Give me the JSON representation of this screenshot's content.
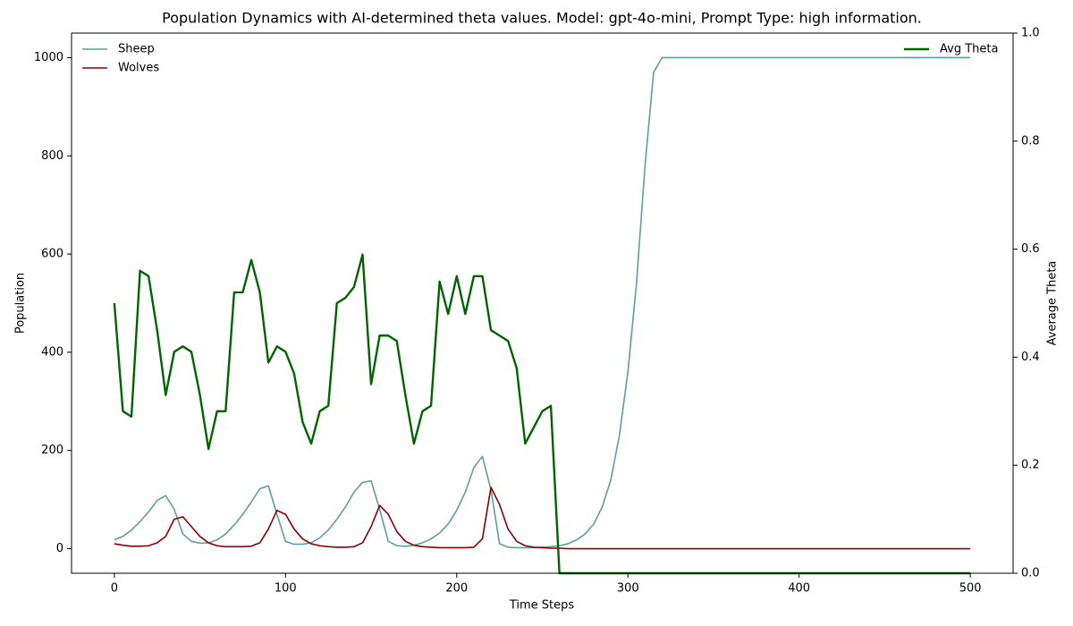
{
  "chart_data": {
    "type": "line",
    "title": "Population Dynamics with AI-determined theta values. Model: gpt-4o-mini, Prompt Type: high information.",
    "x_label": "Time Steps",
    "y_label": "Population",
    "y2_label": "Average Theta",
    "x": [
      0,
      5,
      10,
      15,
      20,
      25,
      30,
      35,
      40,
      45,
      50,
      55,
      60,
      65,
      70,
      75,
      80,
      85,
      90,
      95,
      100,
      105,
      110,
      115,
      120,
      125,
      130,
      135,
      140,
      145,
      150,
      155,
      160,
      165,
      170,
      175,
      180,
      185,
      190,
      195,
      200,
      205,
      210,
      215,
      220,
      225,
      230,
      235,
      240,
      245,
      250,
      255,
      260,
      265,
      270,
      275,
      280,
      285,
      290,
      295,
      300,
      305,
      310,
      315,
      320,
      325,
      330,
      335,
      340,
      345,
      350,
      355,
      360,
      365,
      370,
      375,
      380,
      385,
      390,
      395,
      400,
      405,
      410,
      415,
      420,
      425,
      430,
      435,
      440,
      445,
      450,
      455,
      460,
      465,
      470,
      475,
      480,
      485,
      490,
      495,
      500
    ],
    "series": [
      {
        "name": "Sheep",
        "color": "#5f9ea0",
        "axis": "y",
        "width": 1.6,
        "values": [
          18,
          25,
          38,
          55,
          75,
          98,
          108,
          80,
          30,
          15,
          11,
          12,
          18,
          30,
          48,
          70,
          95,
          122,
          128,
          70,
          15,
          9,
          9,
          12,
          22,
          38,
          60,
          85,
          115,
          135,
          138,
          80,
          15,
          6,
          5,
          7,
          12,
          20,
          32,
          50,
          78,
          115,
          165,
          188,
          120,
          10,
          3,
          2,
          2,
          2,
          3,
          4,
          6,
          10,
          18,
          30,
          50,
          85,
          140,
          230,
          360,
          540,
          780,
          970,
          1000,
          1000,
          1000,
          1000,
          1000,
          1000,
          1000,
          1000,
          1000,
          1000,
          1000,
          1000,
          1000,
          1000,
          1000,
          1000,
          1000,
          1000,
          1000,
          1000,
          1000,
          1000,
          1000,
          1000,
          1000,
          1000,
          1000,
          1000,
          1000,
          1000,
          1000,
          1000,
          1000,
          1000,
          1000,
          1000,
          1000
        ]
      },
      {
        "name": "Wolves",
        "color": "#8b0000",
        "axis": "y",
        "width": 1.6,
        "values": [
          10,
          7,
          5,
          5,
          6,
          12,
          25,
          60,
          65,
          45,
          25,
          12,
          6,
          4,
          4,
          4,
          5,
          12,
          40,
          78,
          70,
          40,
          20,
          10,
          6,
          4,
          3,
          3,
          4,
          12,
          45,
          88,
          70,
          35,
          15,
          7,
          4,
          3,
          2,
          2,
          2,
          2,
          3,
          20,
          125,
          90,
          40,
          15,
          6,
          3,
          2,
          1,
          1,
          0,
          0,
          0,
          0,
          0,
          0,
          0,
          0,
          0,
          0,
          0,
          0,
          0,
          0,
          0,
          0,
          0,
          0,
          0,
          0,
          0,
          0,
          0,
          0,
          0,
          0,
          0,
          0,
          0,
          0,
          0,
          0,
          0,
          0,
          0,
          0,
          0,
          0,
          0,
          0,
          0,
          0,
          0,
          0,
          0,
          0,
          0,
          0
        ]
      },
      {
        "name": "Avg Theta",
        "color": "#006400",
        "axis": "y2",
        "width": 2.4,
        "values": [
          0.5,
          0.3,
          0.29,
          0.56,
          0.55,
          0.45,
          0.33,
          0.41,
          0.42,
          0.41,
          0.33,
          0.23,
          0.3,
          0.3,
          0.52,
          0.52,
          0.58,
          0.52,
          0.39,
          0.42,
          0.41,
          0.37,
          0.28,
          0.24,
          0.3,
          0.31,
          0.5,
          0.51,
          0.53,
          0.59,
          0.35,
          0.44,
          0.44,
          0.43,
          0.33,
          0.24,
          0.3,
          0.31,
          0.54,
          0.48,
          0.55,
          0.48,
          0.55,
          0.55,
          0.45,
          0.44,
          0.43,
          0.38,
          0.24,
          0.27,
          0.3,
          0.31,
          0,
          0,
          0,
          0,
          0,
          0,
          0,
          0,
          0,
          0,
          0,
          0,
          0,
          0,
          0,
          0,
          0,
          0,
          0,
          0,
          0,
          0,
          0,
          0,
          0,
          0,
          0,
          0,
          0,
          0,
          0,
          0,
          0,
          0,
          0,
          0,
          0,
          0,
          0,
          0,
          0,
          0,
          0,
          0,
          0,
          0,
          0,
          0,
          0
        ]
      }
    ],
    "xlim": [
      -25,
      525
    ],
    "xticks": [
      0,
      100,
      200,
      300,
      400,
      500
    ],
    "ylim": [
      -50,
      1050
    ],
    "yticks": [
      0,
      200,
      400,
      600,
      800,
      1000
    ],
    "y2lim": [
      0,
      1
    ],
    "y2ticks": [
      {
        "value": 0,
        "label": "0.0"
      },
      0.2,
      0.4,
      0.6,
      0.8,
      {
        "value": 1,
        "label": "1.0"
      }
    ],
    "grid": false,
    "legend": "upper left",
    "legend2": "upper right"
  }
}
